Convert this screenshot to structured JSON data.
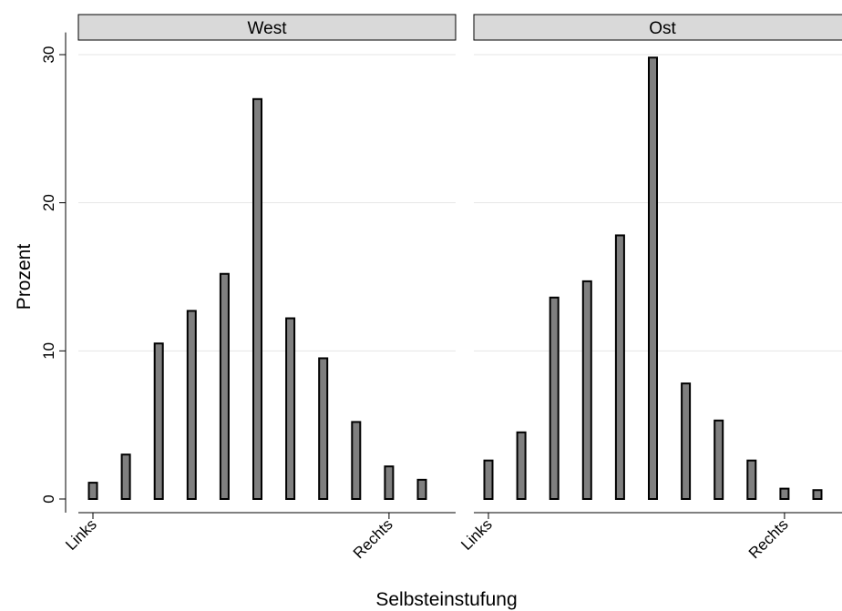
{
  "chart_data": {
    "type": "bar",
    "xlabel": "Selbsteinstufung",
    "ylabel": "Prozent",
    "ylim": [
      0,
      31.5
    ],
    "yticks": [
      0,
      10,
      20,
      30
    ],
    "x_tick_labels": [
      {
        "x": 1,
        "label": "Links"
      },
      {
        "x": 10,
        "label": "Rechts"
      }
    ],
    "grid": true,
    "colors": {
      "bar_fill": "#7f7f7f",
      "strip_fill": "#d9d9d9",
      "grid": "#e6e6e6"
    },
    "panels": [
      {
        "title": "West",
        "x": [
          1,
          2,
          3,
          4,
          5,
          6,
          7,
          8,
          9,
          10,
          11
        ],
        "values": [
          1.1,
          3.0,
          10.5,
          12.7,
          15.2,
          27.0,
          12.2,
          9.5,
          5.2,
          2.2,
          1.3
        ]
      },
      {
        "title": "Ost",
        "x": [
          1,
          2,
          3,
          4,
          5,
          6,
          7,
          8,
          9,
          10,
          11
        ],
        "values": [
          2.6,
          4.5,
          13.6,
          14.7,
          17.8,
          29.8,
          7.8,
          5.3,
          2.6,
          0.7,
          0.6
        ]
      }
    ]
  }
}
